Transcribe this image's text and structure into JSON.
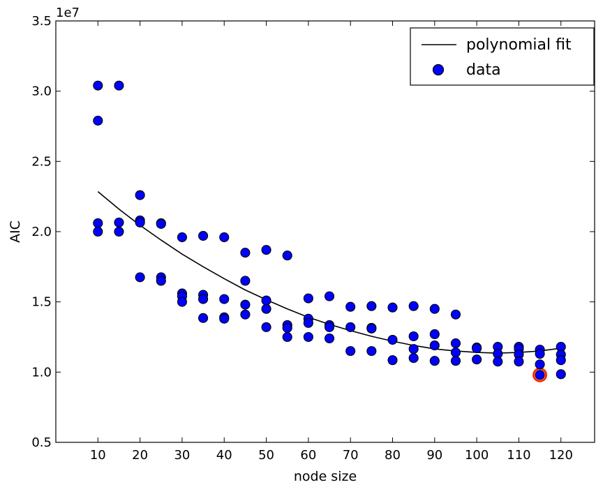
{
  "chart_data": {
    "type": "scatter",
    "title": "",
    "xlabel": "node size",
    "ylabel": "AIC",
    "y_offset_label": "1e7",
    "xlim": [
      0,
      128
    ],
    "ylim": [
      0.5,
      3.5
    ],
    "x_ticks": [
      10,
      20,
      30,
      40,
      50,
      60,
      70,
      80,
      90,
      100,
      110,
      120
    ],
    "y_ticks": [
      0.5,
      1.0,
      1.5,
      2.0,
      2.5,
      3.0,
      3.5
    ],
    "y_tick_labels": [
      "0.5",
      "1.0",
      "1.5",
      "2.0",
      "2.5",
      "3.0",
      "3.5"
    ],
    "grid": false,
    "legend_position": "top-right",
    "legend": {
      "line_label": "polynomial fit",
      "points_label": "data"
    },
    "colors": {
      "points": "#0000ff",
      "line": "#000000",
      "highlight": "#ff2a00"
    },
    "series": [
      {
        "type": "line",
        "name": "polynomial fit",
        "x": [
          10,
          15,
          20,
          25,
          30,
          35,
          40,
          45,
          50,
          55,
          60,
          65,
          70,
          75,
          80,
          85,
          90,
          95,
          100,
          105,
          110,
          115,
          120
        ],
        "y": [
          2.285,
          2.16,
          2.045,
          1.94,
          1.84,
          1.75,
          1.665,
          1.585,
          1.515,
          1.45,
          1.39,
          1.34,
          1.295,
          1.255,
          1.22,
          1.19,
          1.165,
          1.15,
          1.14,
          1.135,
          1.14,
          1.15,
          1.17
        ]
      },
      {
        "type": "scatter",
        "name": "data",
        "points": [
          [
            10,
            3.04
          ],
          [
            10,
            2.79
          ],
          [
            10,
            2.06
          ],
          [
            10,
            2.0
          ],
          [
            15,
            3.04
          ],
          [
            15,
            2.065
          ],
          [
            15,
            2.0
          ],
          [
            20,
            2.26
          ],
          [
            20,
            2.08
          ],
          [
            20,
            2.065
          ],
          [
            20,
            1.675
          ],
          [
            25,
            2.06
          ],
          [
            25,
            2.055
          ],
          [
            25,
            1.675
          ],
          [
            25,
            1.65
          ],
          [
            30,
            1.96
          ],
          [
            30,
            1.56
          ],
          [
            30,
            1.54
          ],
          [
            30,
            1.5
          ],
          [
            35,
            1.97
          ],
          [
            35,
            1.55
          ],
          [
            35,
            1.52
          ],
          [
            35,
            1.385
          ],
          [
            40,
            1.96
          ],
          [
            40,
            1.52
          ],
          [
            40,
            1.39
          ],
          [
            40,
            1.38
          ],
          [
            45,
            1.85
          ],
          [
            45,
            1.65
          ],
          [
            45,
            1.48
          ],
          [
            45,
            1.41
          ],
          [
            50,
            1.87
          ],
          [
            50,
            1.51
          ],
          [
            50,
            1.45
          ],
          [
            50,
            1.32
          ],
          [
            55,
            1.83
          ],
          [
            55,
            1.335
          ],
          [
            55,
            1.315
          ],
          [
            55,
            1.25
          ],
          [
            60,
            1.525
          ],
          [
            60,
            1.38
          ],
          [
            60,
            1.35
          ],
          [
            60,
            1.25
          ],
          [
            65,
            1.54
          ],
          [
            65,
            1.335
          ],
          [
            65,
            1.32
          ],
          [
            65,
            1.24
          ],
          [
            70,
            1.465
          ],
          [
            70,
            1.32
          ],
          [
            70,
            1.15
          ],
          [
            75,
            1.47
          ],
          [
            75,
            1.315
          ],
          [
            75,
            1.31
          ],
          [
            75,
            1.15
          ],
          [
            80,
            1.46
          ],
          [
            80,
            1.23
          ],
          [
            80,
            1.085
          ],
          [
            85,
            1.47
          ],
          [
            85,
            1.255
          ],
          [
            85,
            1.165
          ],
          [
            85,
            1.1
          ],
          [
            90,
            1.45
          ],
          [
            90,
            1.27
          ],
          [
            90,
            1.19
          ],
          [
            90,
            1.08
          ],
          [
            95,
            1.41
          ],
          [
            95,
            1.205
          ],
          [
            95,
            1.14
          ],
          [
            95,
            1.08
          ],
          [
            100,
            1.175
          ],
          [
            100,
            1.17
          ],
          [
            100,
            1.09
          ],
          [
            105,
            1.18
          ],
          [
            105,
            1.13
          ],
          [
            105,
            1.075
          ],
          [
            110,
            1.18
          ],
          [
            110,
            1.165
          ],
          [
            110,
            1.125
          ],
          [
            110,
            1.075
          ],
          [
            115,
            1.16
          ],
          [
            115,
            1.13
          ],
          [
            115,
            1.055
          ],
          [
            115,
            0.98
          ],
          [
            120,
            1.18
          ],
          [
            120,
            1.125
          ],
          [
            120,
            1.085
          ],
          [
            120,
            0.985
          ]
        ]
      }
    ],
    "highlighted_point": [
      115,
      0.98
    ]
  }
}
